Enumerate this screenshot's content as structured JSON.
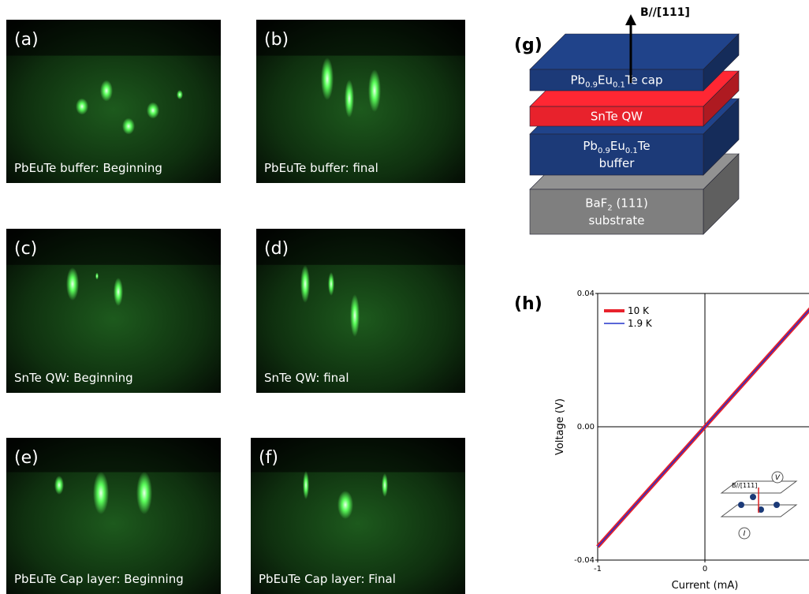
{
  "panels": [
    {
      "label": "(a)",
      "caption": "PbEuTe buffer: Beginning"
    },
    {
      "label": "(b)",
      "caption": "PbEuTe buffer: final"
    },
    {
      "label": "(c)",
      "caption": "SnTe QW: Beginning"
    },
    {
      "label": "(d)",
      "caption": "SnTe QW: final"
    },
    {
      "label": "(e)",
      "caption": "PbEuTe Cap layer: Beginning"
    },
    {
      "label": "(f)",
      "caption": "PbEuTe Cap layer: Final"
    }
  ],
  "structure": {
    "label": "(g)",
    "field": "B//[111]",
    "layers": [
      {
        "color": "#1c3a78",
        "lines": [
          [
            {
              "t": "Pb"
            },
            {
              "s": "0.9"
            },
            {
              "t": "Eu"
            },
            {
              "s": "0.1"
            },
            {
              "t": "Te cap"
            }
          ]
        ]
      },
      {
        "color": "#e8222c",
        "lines": [
          [
            {
              "t": "SnTe QW"
            }
          ]
        ]
      },
      {
        "color": "#1c3a78",
        "lines": [
          [
            {
              "t": "Pb"
            },
            {
              "s": "0.9"
            },
            {
              "t": "Eu"
            },
            {
              "s": "0.1"
            },
            {
              "t": "Te"
            }
          ],
          [
            {
              "t": "buffer"
            }
          ]
        ]
      },
      {
        "color": "#7f7f7f",
        "lines": [
          [
            {
              "t": "BaF"
            },
            {
              "s": "2"
            },
            {
              "t": " (111)"
            }
          ],
          [
            {
              "t": "substrate"
            }
          ]
        ]
      }
    ]
  },
  "chart_data": {
    "type": "line",
    "label": "(h)",
    "x_label": "Current (mA)",
    "y_label": "Voltage (V)",
    "x": [
      -1,
      -0.5,
      0,
      0.5,
      1
    ],
    "series": [
      {
        "name": "10 K",
        "color": "#e8222c",
        "values": [
          -0.036,
          -0.018,
          0,
          0.018,
          0.036
        ]
      },
      {
        "name": "1.9 K",
        "color": "#2233cc",
        "values": [
          -0.036,
          -0.018,
          0,
          0.018,
          0.036
        ]
      }
    ],
    "xlim": [
      -1,
      1
    ],
    "ylim": [
      -0.04,
      0.04
    ],
    "xticks": [
      -1,
      0
    ],
    "yticks": [
      -0.04,
      {
        "value": 0,
        "label": "0.00"
      },
      0.04
    ],
    "inset": {
      "field": "B//[111]",
      "voltage": "V",
      "current": "I"
    }
  }
}
